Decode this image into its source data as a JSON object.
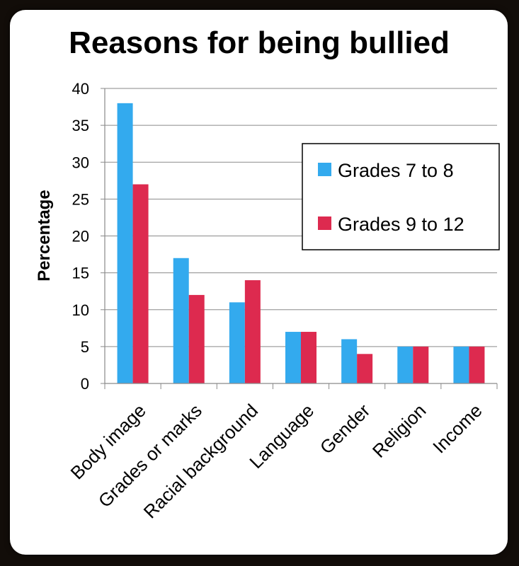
{
  "chart_data": {
    "type": "bar",
    "title": "Reasons for being bullied",
    "ylabel": "Percentage",
    "xlabel": "",
    "ylim": [
      0,
      40
    ],
    "yticks": [
      0,
      5,
      10,
      15,
      20,
      25,
      30,
      35,
      40
    ],
    "grid": "horizontal",
    "legend_position": "right",
    "categories": [
      "Body image",
      "Grades or marks",
      "Racial background",
      "Language",
      "Gender",
      "Religion",
      "Income"
    ],
    "series": [
      {
        "name": "Grades 7 to 8",
        "color": "#33aaee",
        "values": [
          38,
          17,
          11,
          7,
          6,
          5,
          5
        ]
      },
      {
        "name": "Grades 9 to 12",
        "color": "#dd2a4f",
        "values": [
          27,
          12,
          14,
          7,
          4,
          5,
          5
        ]
      }
    ]
  }
}
